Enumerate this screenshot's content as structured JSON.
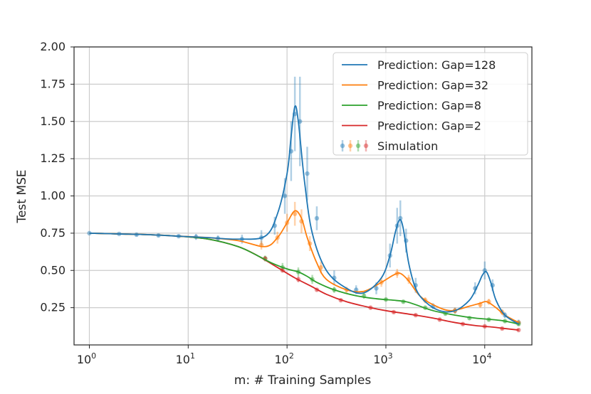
{
  "chart_data": {
    "type": "line",
    "title": "",
    "xlabel": "m: # Training Samples",
    "ylabel": "Test MSE",
    "xscale": "log",
    "xlim": [
      0.7,
      30000
    ],
    "ylim": [
      0.0,
      2.0
    ],
    "x_ticks": [
      {
        "value": 1,
        "base": "10",
        "exp": "0"
      },
      {
        "value": 10,
        "base": "10",
        "exp": "1"
      },
      {
        "value": 100,
        "base": "10",
        "exp": "2"
      },
      {
        "value": 1000,
        "base": "10",
        "exp": "3"
      },
      {
        "value": 10000,
        "base": "10",
        "exp": "4"
      }
    ],
    "y_ticks": [
      "0.25",
      "0.50",
      "0.75",
      "1.00",
      "1.25",
      "1.50",
      "1.75",
      "2.00"
    ],
    "grid": true,
    "legend_position": "top-right",
    "series": [
      {
        "name": "Prediction: Gap=128",
        "color": "#1f77b4",
        "x": [
          1,
          2,
          4,
          8,
          16,
          32,
          60,
          80,
          100,
          110,
          120,
          130,
          150,
          180,
          250,
          400,
          600,
          900,
          1100,
          1250,
          1380,
          1500,
          1700,
          2000,
          2500,
          3500,
          5000,
          7000,
          8500,
          9500,
          10400,
          11500,
          13000,
          16000,
          22000
        ],
        "y": [
          0.75,
          0.745,
          0.74,
          0.73,
          0.72,
          0.71,
          0.73,
          0.88,
          1.15,
          1.4,
          1.6,
          1.5,
          1.1,
          0.75,
          0.5,
          0.38,
          0.35,
          0.45,
          0.6,
          0.76,
          0.84,
          0.78,
          0.55,
          0.38,
          0.29,
          0.23,
          0.23,
          0.3,
          0.4,
          0.47,
          0.49,
          0.42,
          0.3,
          0.2,
          0.14
        ]
      },
      {
        "name": "Prediction: Gap=32",
        "color": "#ff7f0e",
        "x": [
          1,
          2,
          4,
          8,
          16,
          32,
          60,
          80,
          100,
          120,
          140,
          160,
          200,
          250,
          400,
          600,
          900,
          1200,
          1400,
          1700,
          2200,
          3000,
          4500,
          7000,
          9000,
          10500,
          13000,
          16000,
          22000
        ],
        "y": [
          0.75,
          0.745,
          0.74,
          0.73,
          0.72,
          0.7,
          0.66,
          0.72,
          0.82,
          0.9,
          0.85,
          0.72,
          0.55,
          0.44,
          0.37,
          0.36,
          0.42,
          0.47,
          0.48,
          0.43,
          0.33,
          0.27,
          0.23,
          0.26,
          0.28,
          0.29,
          0.25,
          0.2,
          0.15
        ]
      },
      {
        "name": "Prediction: Gap=8",
        "color": "#2ca02c",
        "x": [
          1,
          2,
          4,
          8,
          16,
          32,
          50,
          70,
          100,
          130,
          160,
          200,
          300,
          500,
          800,
          1200,
          1600,
          2000,
          3000,
          5000,
          8000,
          12000,
          16000,
          22000
        ],
        "y": [
          0.75,
          0.745,
          0.74,
          0.73,
          0.71,
          0.66,
          0.6,
          0.55,
          0.51,
          0.49,
          0.46,
          0.42,
          0.37,
          0.33,
          0.31,
          0.3,
          0.29,
          0.27,
          0.23,
          0.2,
          0.18,
          0.17,
          0.16,
          0.14
        ]
      },
      {
        "name": "Prediction: Gap=2",
        "color": "#d62728",
        "x": [
          1,
          2,
          4,
          8,
          16,
          32,
          50,
          80,
          120,
          180,
          250,
          400,
          700,
          1000,
          2000,
          3000,
          5000,
          8000,
          12000,
          16000,
          22000
        ],
        "y": [
          0.75,
          0.745,
          0.74,
          0.73,
          0.71,
          0.66,
          0.6,
          0.52,
          0.45,
          0.39,
          0.34,
          0.29,
          0.25,
          0.23,
          0.2,
          0.18,
          0.15,
          0.13,
          0.12,
          0.11,
          0.1
        ]
      }
    ],
    "simulation": {
      "name": "Simulation",
      "groups": [
        {
          "color": "#1f77b4",
          "points": [
            {
              "x": 1,
              "y": 0.75,
              "err": 0.0
            },
            {
              "x": 2,
              "y": 0.745,
              "err": 0.0
            },
            {
              "x": 3,
              "y": 0.74,
              "err": 0.01
            },
            {
              "x": 5,
              "y": 0.735,
              "err": 0.01
            },
            {
              "x": 8,
              "y": 0.73,
              "err": 0.01
            },
            {
              "x": 12,
              "y": 0.725,
              "err": 0.02
            },
            {
              "x": 20,
              "y": 0.715,
              "err": 0.02
            },
            {
              "x": 35,
              "y": 0.71,
              "err": 0.03
            },
            {
              "x": 55,
              "y": 0.72,
              "err": 0.05
            },
            {
              "x": 75,
              "y": 0.8,
              "err": 0.06
            },
            {
              "x": 95,
              "y": 1.0,
              "err": 0.12
            },
            {
              "x": 110,
              "y": 1.3,
              "err": 0.2
            },
            {
              "x": 120,
              "y": 1.55,
              "err": 0.25
            },
            {
              "x": 135,
              "y": 1.5,
              "err": 0.3
            },
            {
              "x": 160,
              "y": 1.15,
              "err": 0.18
            },
            {
              "x": 200,
              "y": 0.85,
              "err": 0.08
            },
            {
              "x": 300,
              "y": 0.45,
              "err": 0.05
            },
            {
              "x": 500,
              "y": 0.37,
              "err": 0.03
            },
            {
              "x": 800,
              "y": 0.38,
              "err": 0.04
            },
            {
              "x": 1100,
              "y": 0.6,
              "err": 0.08
            },
            {
              "x": 1300,
              "y": 0.8,
              "err": 0.12
            },
            {
              "x": 1400,
              "y": 0.85,
              "err": 0.12
            },
            {
              "x": 1600,
              "y": 0.7,
              "err": 0.08
            },
            {
              "x": 2000,
              "y": 0.4,
              "err": 0.05
            },
            {
              "x": 3000,
              "y": 0.26,
              "err": 0.02
            },
            {
              "x": 5000,
              "y": 0.23,
              "err": 0.02
            },
            {
              "x": 8000,
              "y": 0.38,
              "err": 0.04
            },
            {
              "x": 10000,
              "y": 0.5,
              "err": 0.06
            },
            {
              "x": 12000,
              "y": 0.4,
              "err": 0.04
            },
            {
              "x": 16000,
              "y": 0.2,
              "err": 0.02
            },
            {
              "x": 22000,
              "y": 0.15,
              "err": 0.02
            }
          ]
        },
        {
          "color": "#ff7f0e",
          "points": [
            {
              "x": 55,
              "y": 0.67,
              "err": 0.03
            },
            {
              "x": 80,
              "y": 0.72,
              "err": 0.04
            },
            {
              "x": 100,
              "y": 0.82,
              "err": 0.06
            },
            {
              "x": 120,
              "y": 0.88,
              "err": 0.08
            },
            {
              "x": 140,
              "y": 0.83,
              "err": 0.08
            },
            {
              "x": 170,
              "y": 0.68,
              "err": 0.05
            },
            {
              "x": 220,
              "y": 0.52,
              "err": 0.04
            },
            {
              "x": 400,
              "y": 0.37,
              "err": 0.02
            },
            {
              "x": 900,
              "y": 0.42,
              "err": 0.03
            },
            {
              "x": 1300,
              "y": 0.48,
              "err": 0.03
            },
            {
              "x": 1700,
              "y": 0.44,
              "err": 0.03
            },
            {
              "x": 2500,
              "y": 0.3,
              "err": 0.02
            },
            {
              "x": 5000,
              "y": 0.23,
              "err": 0.02
            },
            {
              "x": 9000,
              "y": 0.27,
              "err": 0.02
            },
            {
              "x": 11000,
              "y": 0.29,
              "err": 0.02
            },
            {
              "x": 15000,
              "y": 0.22,
              "err": 0.02
            },
            {
              "x": 22000,
              "y": 0.15,
              "err": 0.01
            }
          ]
        },
        {
          "color": "#2ca02c",
          "points": [
            {
              "x": 60,
              "y": 0.58,
              "err": 0.02
            },
            {
              "x": 90,
              "y": 0.52,
              "err": 0.03
            },
            {
              "x": 130,
              "y": 0.49,
              "err": 0.03
            },
            {
              "x": 180,
              "y": 0.44,
              "err": 0.03
            },
            {
              "x": 300,
              "y": 0.37,
              "err": 0.02
            },
            {
              "x": 600,
              "y": 0.33,
              "err": 0.02
            },
            {
              "x": 1000,
              "y": 0.305,
              "err": 0.01
            },
            {
              "x": 1500,
              "y": 0.29,
              "err": 0.01
            },
            {
              "x": 2500,
              "y": 0.25,
              "err": 0.01
            },
            {
              "x": 4000,
              "y": 0.21,
              "err": 0.01
            },
            {
              "x": 7000,
              "y": 0.18,
              "err": 0.01
            },
            {
              "x": 11000,
              "y": 0.17,
              "err": 0.01
            },
            {
              "x": 16000,
              "y": 0.16,
              "err": 0.01
            },
            {
              "x": 22000,
              "y": 0.14,
              "err": 0.01
            }
          ]
        },
        {
          "color": "#d62728",
          "points": [
            {
              "x": 60,
              "y": 0.58,
              "err": 0.01
            },
            {
              "x": 90,
              "y": 0.5,
              "err": 0.01
            },
            {
              "x": 130,
              "y": 0.44,
              "err": 0.02
            },
            {
              "x": 200,
              "y": 0.37,
              "err": 0.01
            },
            {
              "x": 350,
              "y": 0.3,
              "err": 0.01
            },
            {
              "x": 700,
              "y": 0.25,
              "err": 0.01
            },
            {
              "x": 1200,
              "y": 0.22,
              "err": 0.01
            },
            {
              "x": 2000,
              "y": 0.2,
              "err": 0.01
            },
            {
              "x": 3500,
              "y": 0.17,
              "err": 0.01
            },
            {
              "x": 6000,
              "y": 0.14,
              "err": 0.01
            },
            {
              "x": 10000,
              "y": 0.125,
              "err": 0.01
            },
            {
              "x": 15000,
              "y": 0.11,
              "err": 0.01
            },
            {
              "x": 22000,
              "y": 0.1,
              "err": 0.01
            }
          ]
        }
      ]
    }
  }
}
